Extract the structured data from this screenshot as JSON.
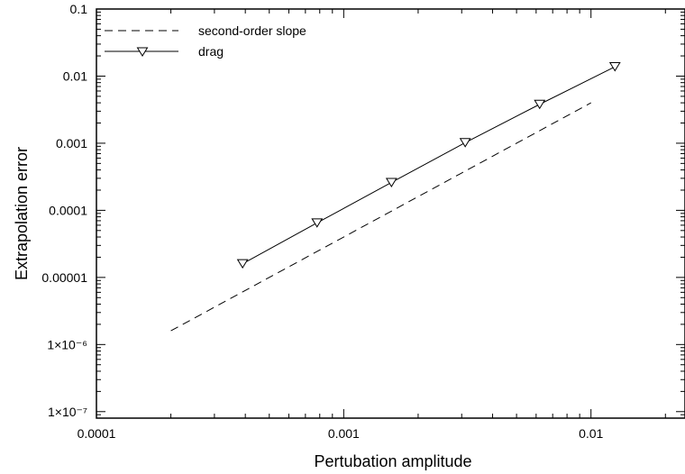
{
  "chart_data": {
    "type": "line",
    "xlabel": "Pertubation amplitude",
    "ylabel": "Extrapolation error",
    "xscale": "log",
    "yscale": "log",
    "xlim": [
      0.0001,
      0.024
    ],
    "ylim": [
      8e-08,
      0.1
    ],
    "grid": false,
    "legend_position": "top-left",
    "x_ticks": [
      {
        "value": 0.0001,
        "label": "0.0001"
      },
      {
        "value": 0.001,
        "label": "0.001"
      },
      {
        "value": 0.01,
        "label": "0.01"
      }
    ],
    "y_ticks": [
      {
        "value": 1e-07,
        "label": "1×10⁻⁷"
      },
      {
        "value": 1e-06,
        "label": "1×10⁻⁶"
      },
      {
        "value": 1e-05,
        "label": "0.00001"
      },
      {
        "value": 0.0001,
        "label": "0.0001"
      },
      {
        "value": 0.001,
        "label": "0.001"
      },
      {
        "value": 0.01,
        "label": "0.01"
      },
      {
        "value": 0.1,
        "label": "0.1"
      }
    ],
    "series": [
      {
        "name": "second-order slope",
        "style": "dashed",
        "color": "#000000",
        "marker": "none",
        "x": [
          0.0002,
          0.01
        ],
        "y": [
          1.6e-06,
          0.004
        ]
      },
      {
        "name": "drag",
        "style": "solid",
        "color": "#000000",
        "marker": "triangle-down",
        "x": [
          0.00039,
          0.00078,
          0.00156,
          0.0031,
          0.0062,
          0.0125
        ],
        "y": [
          1.6e-05,
          6.5e-05,
          0.00026,
          0.00102,
          0.0038,
          0.0138
        ]
      }
    ]
  }
}
